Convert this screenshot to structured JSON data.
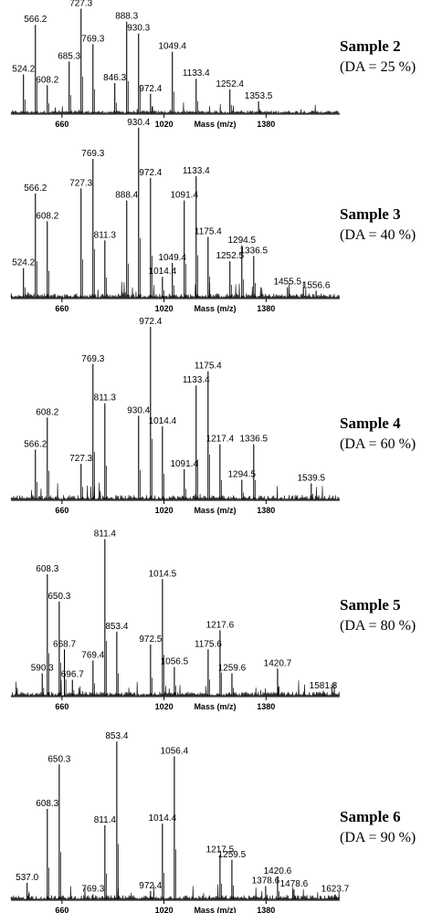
{
  "chart_data": [
    {
      "type": "line",
      "title": "Sample 2",
      "subtitle": "(DA = 25 %)",
      "xlabel": "Mass (m/z)",
      "xticks": [
        660,
        1020,
        1380
      ],
      "xlim": [
        480,
        1640
      ],
      "peaks": [
        {
          "x": 524.2,
          "h": 0.36,
          "label": "524.2"
        },
        {
          "x": 566.2,
          "h": 0.82,
          "label": "566.2"
        },
        {
          "x": 608.2,
          "h": 0.26,
          "label": "608.2"
        },
        {
          "x": 685.3,
          "h": 0.48,
          "label": "685.3"
        },
        {
          "x": 727.3,
          "h": 0.97,
          "label": "727.3"
        },
        {
          "x": 769.3,
          "h": 0.64,
          "label": "769.3"
        },
        {
          "x": 846.3,
          "h": 0.28,
          "label": "846.3"
        },
        {
          "x": 888.3,
          "h": 0.85,
          "label": "888.3"
        },
        {
          "x": 930.3,
          "h": 0.74,
          "label": "930.3"
        },
        {
          "x": 972.4,
          "h": 0.18,
          "label": "972.4"
        },
        {
          "x": 1049.4,
          "h": 0.57,
          "label": "1049.4"
        },
        {
          "x": 1133.4,
          "h": 0.32,
          "label": "1133.4"
        },
        {
          "x": 1252.4,
          "h": 0.22,
          "label": "1252.4"
        },
        {
          "x": 1353.5,
          "h": 0.11,
          "label": "1353.5"
        }
      ]
    },
    {
      "type": "line",
      "title": "Sample 3",
      "subtitle": "(DA = 40 %)",
      "xlabel": "Mass (m/z)",
      "xticks": [
        660,
        1020,
        1380
      ],
      "xlim": [
        480,
        1640
      ],
      "peaks": [
        {
          "x": 524.2,
          "h": 0.17,
          "label": "524.2"
        },
        {
          "x": 566.2,
          "h": 0.6,
          "label": "566.2"
        },
        {
          "x": 608.2,
          "h": 0.44,
          "label": "608.2"
        },
        {
          "x": 727.3,
          "h": 0.63,
          "label": "727.3"
        },
        {
          "x": 769.3,
          "h": 0.8,
          "label": "769.3"
        },
        {
          "x": 811.3,
          "h": 0.33,
          "label": "811.3"
        },
        {
          "x": 888.4,
          "h": 0.56,
          "label": "888.4"
        },
        {
          "x": 930.4,
          "h": 0.98,
          "label": "930.4"
        },
        {
          "x": 972.4,
          "h": 0.69,
          "label": "972.4"
        },
        {
          "x": 1014.4,
          "h": 0.12,
          "label": "1014.4"
        },
        {
          "x": 1049.4,
          "h": 0.2,
          "label": "1049.4"
        },
        {
          "x": 1091.4,
          "h": 0.56,
          "label": "1091.4"
        },
        {
          "x": 1133.4,
          "h": 0.7,
          "label": "1133.4"
        },
        {
          "x": 1175.4,
          "h": 0.35,
          "label": "1175.4"
        },
        {
          "x": 1252.5,
          "h": 0.21,
          "label": "1252.5"
        },
        {
          "x": 1294.5,
          "h": 0.3,
          "label": "1294.5"
        },
        {
          "x": 1336.5,
          "h": 0.24,
          "label": "1336.5"
        },
        {
          "x": 1455.5,
          "h": 0.06,
          "label": "1455.5"
        },
        {
          "x": 1556.6,
          "h": 0.04,
          "label": "1556.6"
        }
      ]
    },
    {
      "type": "line",
      "title": "Sample 4",
      "subtitle": "(DA = 60 %)",
      "xlabel": "Mass (m/z)",
      "xticks": [
        660,
        1020,
        1380
      ],
      "xlim": [
        480,
        1640
      ],
      "peaks": [
        {
          "x": 566.2,
          "h": 0.28,
          "label": "566.2"
        },
        {
          "x": 608.2,
          "h": 0.46,
          "label": "608.2"
        },
        {
          "x": 727.3,
          "h": 0.2,
          "label": "727.3"
        },
        {
          "x": 769.3,
          "h": 0.76,
          "label": "769.3"
        },
        {
          "x": 811.3,
          "h": 0.54,
          "label": "811.3"
        },
        {
          "x": 930.4,
          "h": 0.47,
          "label": "930.4"
        },
        {
          "x": 972.4,
          "h": 0.97,
          "label": "972.4"
        },
        {
          "x": 1014.4,
          "h": 0.41,
          "label": "1014.4"
        },
        {
          "x": 1091.4,
          "h": 0.17,
          "label": "1091.4"
        },
        {
          "x": 1133.4,
          "h": 0.64,
          "label": "1133.4"
        },
        {
          "x": 1175.4,
          "h": 0.72,
          "label": "1175.4"
        },
        {
          "x": 1217.4,
          "h": 0.31,
          "label": "1217.4"
        },
        {
          "x": 1294.5,
          "h": 0.11,
          "label": "1294.5"
        },
        {
          "x": 1336.5,
          "h": 0.31,
          "label": "1336.5"
        },
        {
          "x": 1539.5,
          "h": 0.09,
          "label": "1539.5"
        }
      ]
    },
    {
      "type": "line",
      "title": "Sample 5",
      "subtitle": "(DA = 80 %)",
      "xlabel": "Mass (m/z)",
      "xticks": [
        660,
        1020,
        1380
      ],
      "xlim": [
        480,
        1640
      ],
      "peaks": [
        {
          "x": 590.3,
          "h": 0.14,
          "label": "590.3"
        },
        {
          "x": 608.3,
          "h": 0.76,
          "label": "608.3"
        },
        {
          "x": 650.3,
          "h": 0.59,
          "label": "650.3"
        },
        {
          "x": 668.7,
          "h": 0.29,
          "label": "668.7"
        },
        {
          "x": 696.7,
          "h": 0.1,
          "label": "696.7"
        },
        {
          "x": 769.4,
          "h": 0.22,
          "label": "769.4"
        },
        {
          "x": 811.4,
          "h": 0.98,
          "label": "811.4"
        },
        {
          "x": 853.4,
          "h": 0.4,
          "label": "853.4"
        },
        {
          "x": 972.5,
          "h": 0.32,
          "label": "972.5"
        },
        {
          "x": 1014.5,
          "h": 0.73,
          "label": "1014.5"
        },
        {
          "x": 1056.5,
          "h": 0.18,
          "label": "1056.5"
        },
        {
          "x": 1175.6,
          "h": 0.29,
          "label": "1175.6"
        },
        {
          "x": 1217.6,
          "h": 0.41,
          "label": "1217.6"
        },
        {
          "x": 1259.6,
          "h": 0.14,
          "label": "1259.6"
        },
        {
          "x": 1420.7,
          "h": 0.17,
          "label": "1420.7"
        },
        {
          "x": 1581.8,
          "h": 0.03,
          "label": "1581.8"
        }
      ]
    },
    {
      "type": "line",
      "title": "Sample 6",
      "subtitle": "(DA = 90 %)",
      "xlabel": "Mass (m/z)",
      "xticks": [
        660,
        1020,
        1380
      ],
      "xlim": [
        480,
        1640
      ],
      "peaks": [
        {
          "x": 537.0,
          "h": 0.1,
          "label": "537.0"
        },
        {
          "x": 608.3,
          "h": 0.55,
          "label": "608.3"
        },
        {
          "x": 650.3,
          "h": 0.82,
          "label": "650.3"
        },
        {
          "x": 769.3,
          "h": 0.03,
          "label": "769.3"
        },
        {
          "x": 811.4,
          "h": 0.45,
          "label": "811.4"
        },
        {
          "x": 853.4,
          "h": 0.96,
          "label": "853.4"
        },
        {
          "x": 972.4,
          "h": 0.05,
          "label": "972.4"
        },
        {
          "x": 1014.4,
          "h": 0.46,
          "label": "1014.4"
        },
        {
          "x": 1056.4,
          "h": 0.87,
          "label": "1056.4"
        },
        {
          "x": 1217.5,
          "h": 0.27,
          "label": "1217.5"
        },
        {
          "x": 1259.5,
          "h": 0.24,
          "label": "1259.5"
        },
        {
          "x": 1378.6,
          "h": 0.08,
          "label": "1378.6"
        },
        {
          "x": 1420.6,
          "h": 0.14,
          "label": "1420.6"
        },
        {
          "x": 1478.6,
          "h": 0.06,
          "label": "1478.6"
        },
        {
          "x": 1623.7,
          "h": 0.03,
          "label": "1623.7"
        }
      ]
    }
  ]
}
